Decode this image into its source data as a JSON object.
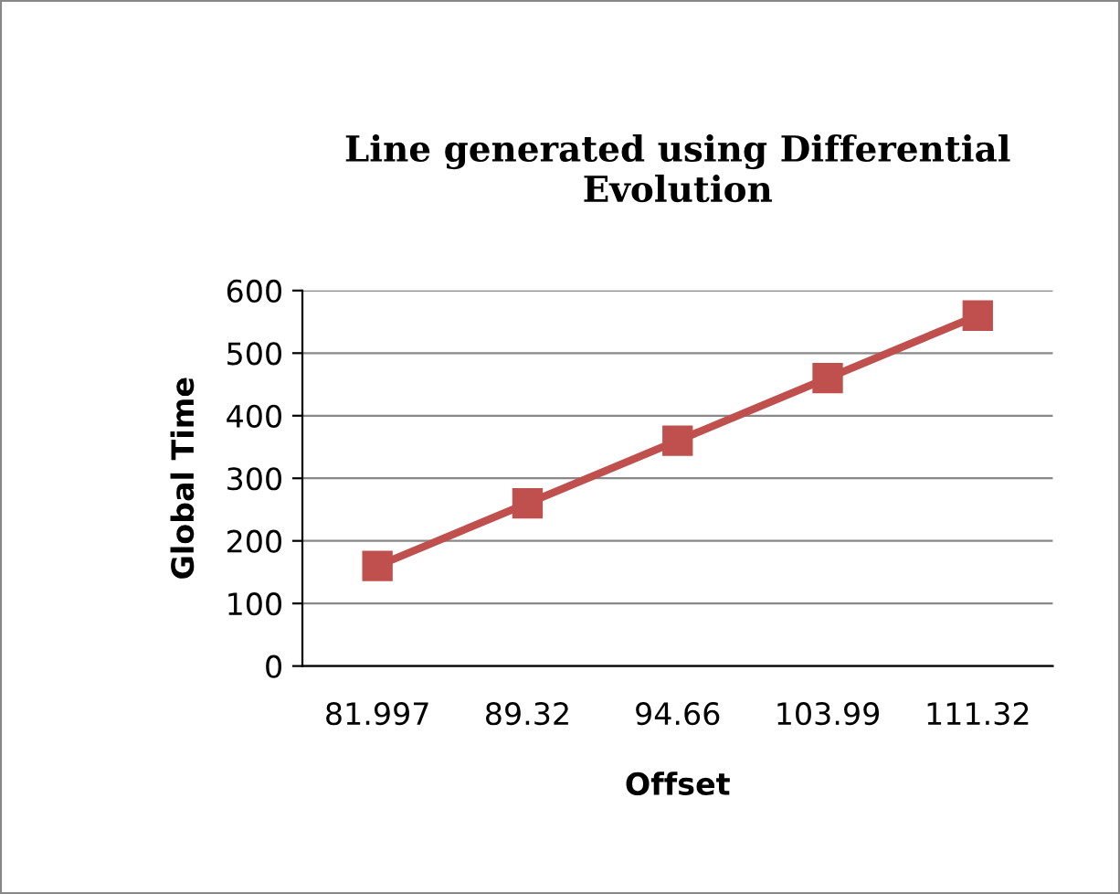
{
  "chart_data": {
    "type": "line",
    "title": "Line generated using Differential\nEvolution",
    "xlabel": "Offset",
    "ylabel": "Global Time",
    "categories": [
      "81.997",
      "89.32",
      "94.66",
      "103.99",
      "111.32"
    ],
    "series": [
      {
        "color": "#c0504d",
        "values": [
          160,
          260,
          360,
          460,
          560
        ]
      }
    ],
    "ylim": [
      0,
      600
    ],
    "yticks": [
      0,
      100,
      200,
      300,
      400,
      500,
      600
    ],
    "grid": "y",
    "marker": "square",
    "line_style": "solid"
  }
}
